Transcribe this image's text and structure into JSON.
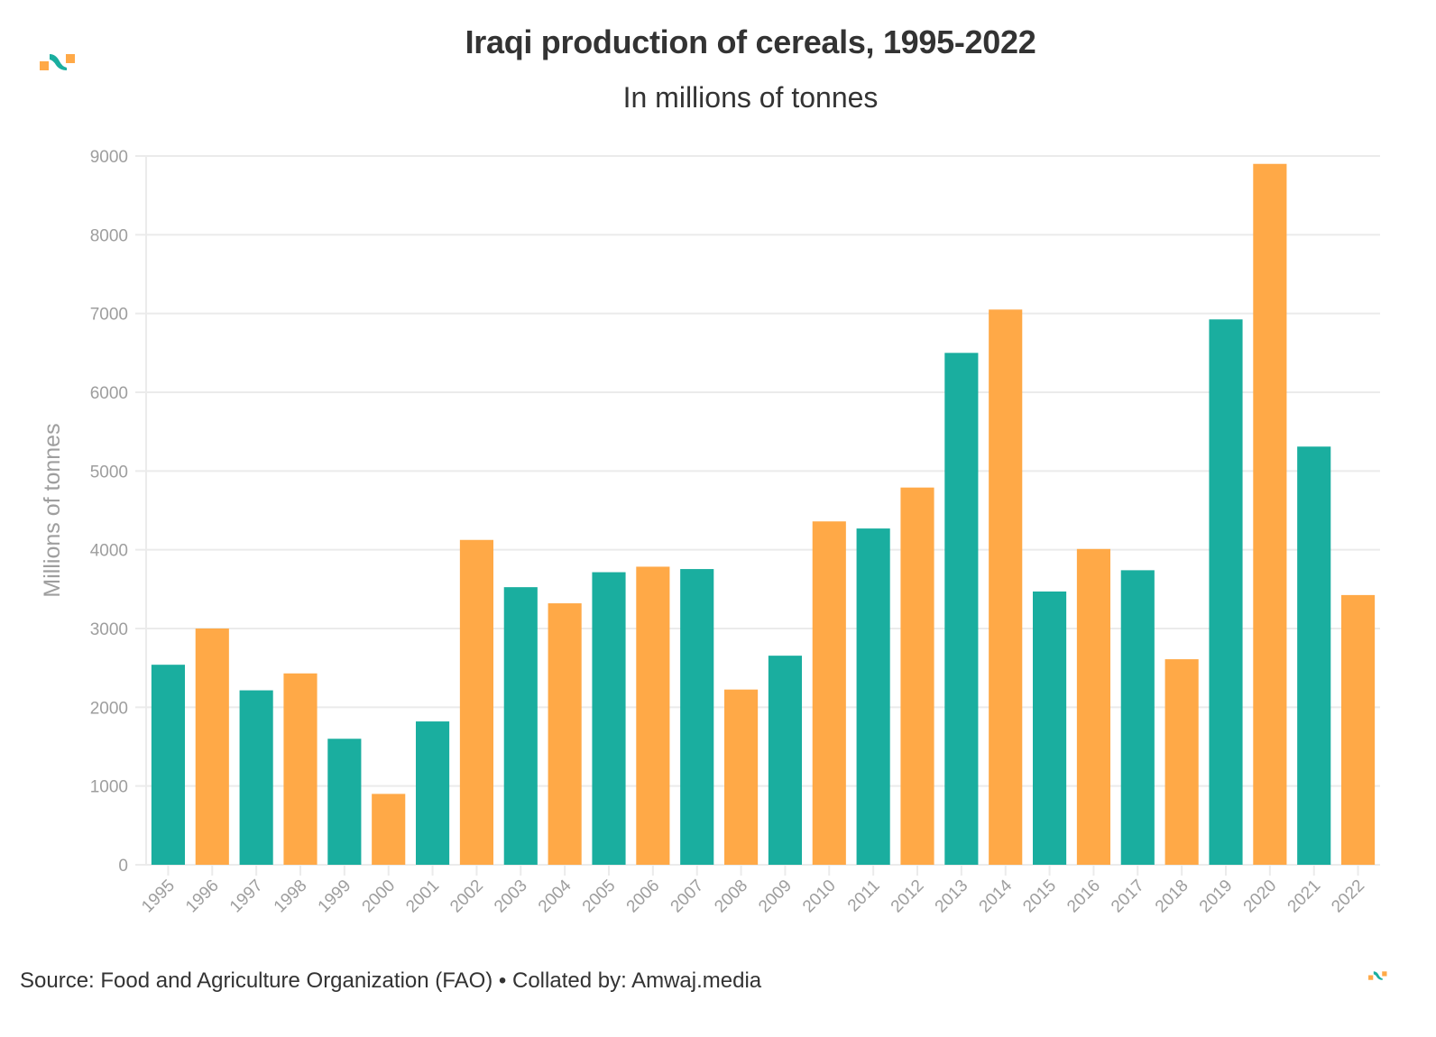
{
  "header": {
    "title": "Iraqi production of cereals, 1995-2022",
    "subtitle": "In millions of tonnes"
  },
  "footer": {
    "source": "Source: Food and Agriculture Organization (FAO) • Collated by: Amwaj.media"
  },
  "branding": {
    "logo_icon": "amwaj-logo-icon",
    "colors": {
      "teal": "#1aae9f",
      "orange": "#ffa947"
    }
  },
  "chart_data": {
    "type": "bar",
    "title": "Iraqi production of cereals, 1995-2022",
    "subtitle": "In millions of tonnes",
    "xlabel": "",
    "ylabel": "Millions of tonnes",
    "ylim": [
      0,
      9000
    ],
    "yticks": [
      0,
      1000,
      2000,
      3000,
      4000,
      5000,
      6000,
      7000,
      8000,
      9000
    ],
    "grid": true,
    "legend": "none",
    "categories": [
      "1995",
      "1996",
      "1997",
      "1998",
      "1999",
      "2000",
      "2001",
      "2002",
      "2003",
      "2004",
      "2005",
      "2006",
      "2007",
      "2008",
      "2009",
      "2010",
      "2011",
      "2012",
      "2013",
      "2014",
      "2015",
      "2016",
      "2017",
      "2018",
      "2019",
      "2020",
      "2021",
      "2022"
    ],
    "values": [
      2540,
      3000,
      2215,
      2430,
      1600,
      900,
      1820,
      4125,
      3525,
      3320,
      3715,
      3785,
      3755,
      2225,
      2655,
      4360,
      4270,
      4790,
      6500,
      7050,
      3470,
      4010,
      3740,
      2610,
      6925,
      8900,
      5310,
      3425
    ],
    "bar_colors": [
      "#1aae9f",
      "#ffa947"
    ],
    "color_pattern": "alternating"
  }
}
